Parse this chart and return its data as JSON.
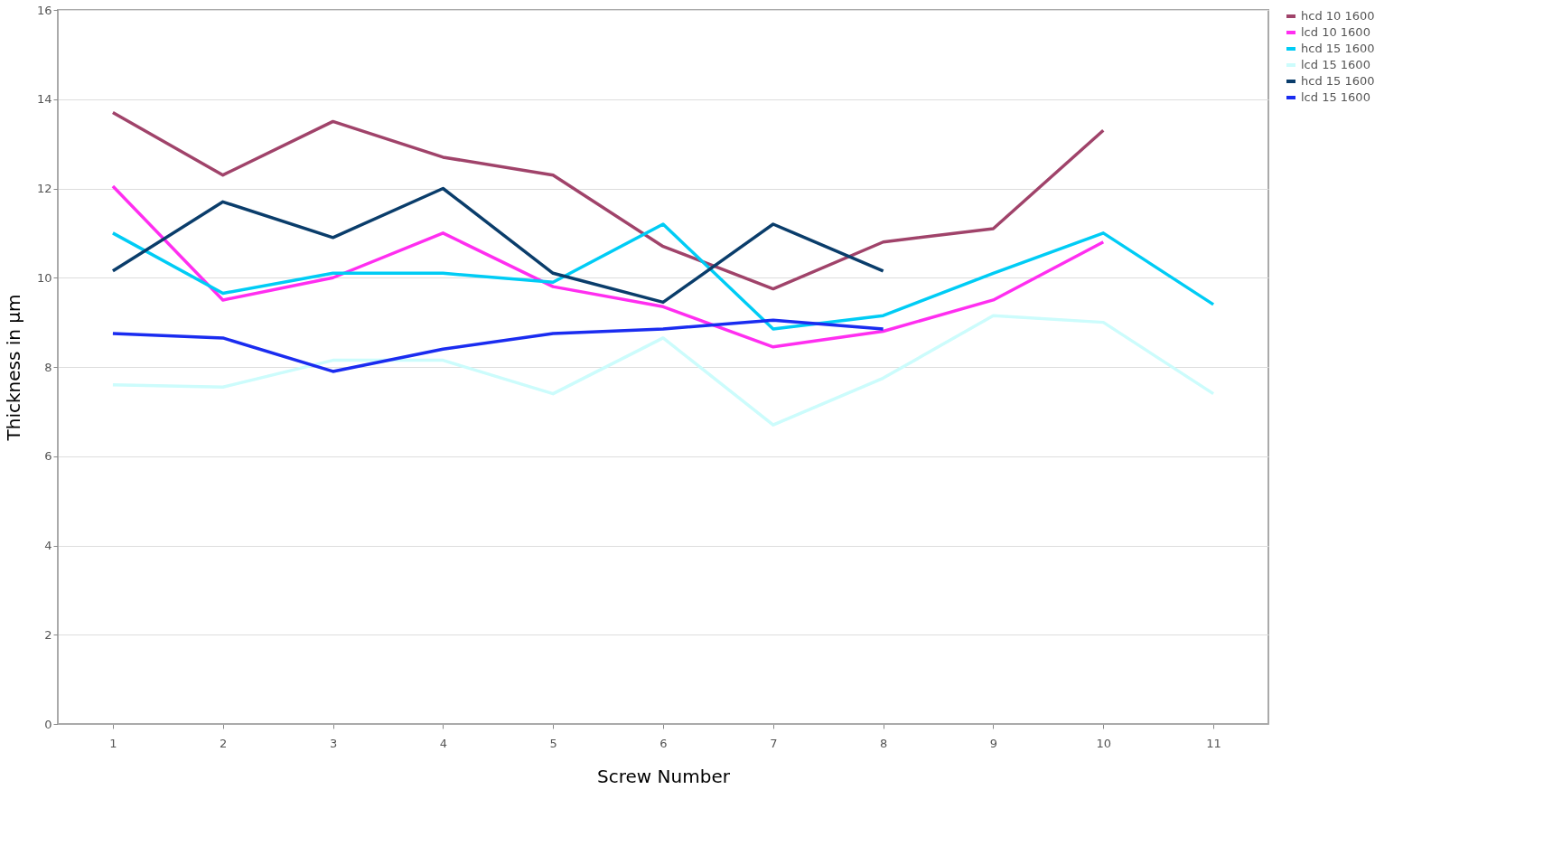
{
  "chart_data": {
    "type": "line",
    "xlabel": "Screw Number",
    "ylabel": "Thickness in µm",
    "categories": [
      "1",
      "2",
      "3",
      "4",
      "5",
      "6",
      "7",
      "8",
      "9",
      "10",
      "11"
    ],
    "ylim": [
      0,
      16
    ],
    "yticks": [
      0,
      2,
      4,
      6,
      8,
      10,
      12,
      14,
      16
    ],
    "grid": "y",
    "legend": "right",
    "line_style": "solid",
    "marker": "none",
    "series": [
      {
        "name": "hcd 10 1600",
        "color": "#a0436a",
        "values": [
          13.7,
          12.3,
          13.5,
          12.7,
          12.3,
          10.7,
          9.75,
          10.8,
          11.1,
          13.3,
          null
        ]
      },
      {
        "name": "lcd 10 1600",
        "color": "#ff2ef0",
        "values": [
          12.05,
          9.5,
          10.0,
          11.0,
          9.8,
          9.35,
          8.45,
          8.8,
          9.5,
          10.8,
          null
        ]
      },
      {
        "name": "hcd 15 1600",
        "color": "#00ccf5",
        "values": [
          11.0,
          9.65,
          10.1,
          10.1,
          9.9,
          11.2,
          8.85,
          9.15,
          10.1,
          11.0,
          9.4
        ]
      },
      {
        "name": "lcd 15 1600",
        "color": "#ccfcfc",
        "values": [
          7.6,
          7.55,
          8.15,
          8.15,
          7.4,
          8.65,
          6.7,
          7.75,
          9.15,
          9.0,
          7.4
        ]
      },
      {
        "name": "hcd 15 1600",
        "color": "#0a3d6b",
        "values": [
          10.15,
          11.7,
          10.9,
          12.0,
          10.1,
          9.45,
          11.2,
          10.15,
          null,
          null,
          null
        ]
      },
      {
        "name": "lcd 15 1600",
        "color": "#1a2cf0",
        "values": [
          8.75,
          8.65,
          7.9,
          8.4,
          8.75,
          8.85,
          9.05,
          8.85,
          null,
          null,
          null
        ]
      }
    ]
  }
}
